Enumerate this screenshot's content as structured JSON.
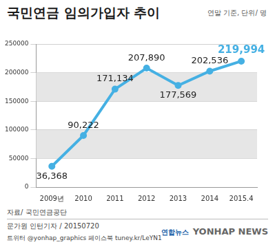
{
  "chart_data": {
    "type": "line",
    "title": "국민연금 임의가입자 추이",
    "subtitle": "연말 기준, 단위/ 명",
    "categories": [
      "2009년",
      "2010",
      "2011",
      "2012",
      "2013",
      "2014",
      "2015.4"
    ],
    "values": [
      36368,
      90222,
      171134,
      207890,
      177569,
      202536,
      219994
    ],
    "value_labels": [
      "36,368",
      "90,222",
      "171,134",
      "207,890",
      "177,569",
      "202,536",
      "219,994"
    ],
    "data_labels": true,
    "color": "#45b0e3",
    "marker": "circle",
    "ylim": [
      0,
      250000
    ],
    "yticks": [
      0,
      50000,
      100000,
      150000,
      200000,
      250000
    ],
    "grid": true,
    "source": "자료/ 국민연금공단",
    "annotations": [
      "문가원 인턴기자 / 20150720",
      "트위터 @yonhap_graphics  페이스북 tuney.kr/LeYN1",
      "연합뉴스",
      "YONHAP NEWS"
    ]
  }
}
